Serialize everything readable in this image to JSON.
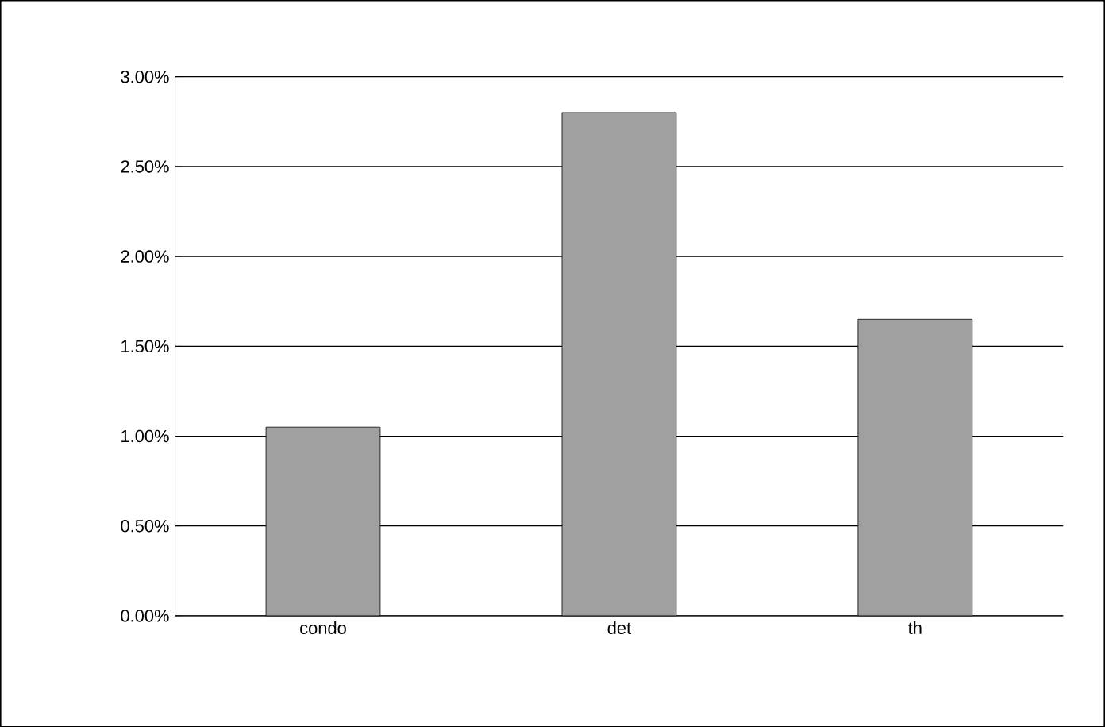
{
  "chart_data": {
    "type": "bar",
    "categories": [
      "condo",
      "det",
      "th"
    ],
    "values": [
      1.05,
      2.8,
      1.65
    ],
    "color": "#a0a0a0",
    "ylim": [
      0,
      3
    ],
    "yticks": [
      {
        "value": 0,
        "label": "0.00%"
      },
      {
        "value": 0.5,
        "label": "0.50%"
      },
      {
        "value": 1,
        "label": "1.00%"
      },
      {
        "value": 1.5,
        "label": "1.50%"
      },
      {
        "value": 2,
        "label": "2.00%"
      },
      {
        "value": 2.5,
        "label": "2.50%"
      },
      {
        "value": 3,
        "label": "3.00%"
      }
    ],
    "grid": "y"
  }
}
